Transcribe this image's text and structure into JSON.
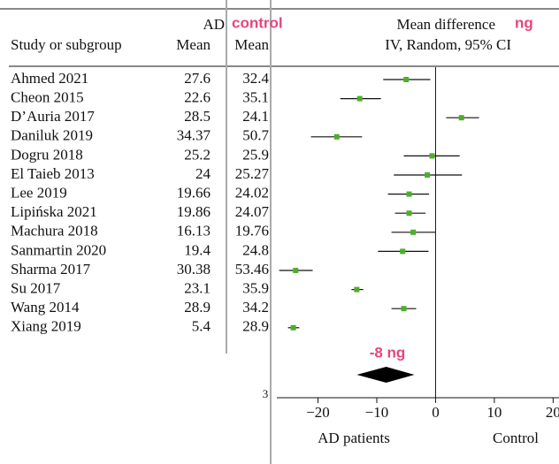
{
  "header": {
    "ad": "AD",
    "control": "control",
    "mean_difference": "Mean difference",
    "unit": "ng",
    "study_col": "Study or subgroup",
    "mean_ad": "Mean",
    "mean_control": "Mean",
    "method": "IV, Random, 95% CI"
  },
  "chart_data": {
    "type": "forest",
    "xlim": [
      -27,
      21
    ],
    "xticks": [
      {
        "value": -20,
        "label": "−20"
      },
      {
        "value": -10,
        "label": "−10"
      },
      0,
      10,
      20
    ],
    "square_color": "#4caf2a",
    "studies": [
      {
        "name": "Ahmed 2021",
        "ad_mean": 27.6,
        "control_mean": 32.4,
        "estimate": -5.0,
        "ci_low": -8.9,
        "ci_high": -0.9
      },
      {
        "name": "Cheon 2015",
        "ad_mean": 22.6,
        "control_mean": 35.1,
        "estimate": -12.9,
        "ci_low": -16.2,
        "ci_high": -9.3
      },
      {
        "name": "D’Auria 2017",
        "ad_mean": 28.5,
        "control_mean": 24.1,
        "estimate": 4.4,
        "ci_low": 1.8,
        "ci_high": 7.4
      },
      {
        "name": "Daniluk 2019",
        "ad_mean": 34.37,
        "control_mean": 50.7,
        "estimate": -16.8,
        "ci_low": -21.2,
        "ci_high": -12.5
      },
      {
        "name": "Dogru 2018",
        "ad_mean": 25.2,
        "control_mean": 25.9,
        "estimate": -0.6,
        "ci_low": -5.4,
        "ci_high": 4.1
      },
      {
        "name": "El Taieb 2013",
        "ad_mean": 24,
        "control_mean": 25.27,
        "estimate": -1.4,
        "ci_low": -7.1,
        "ci_high": 4.5
      },
      {
        "name": "Lee 2019",
        "ad_mean": 19.66,
        "control_mean": 24.02,
        "estimate": -4.5,
        "ci_low": -8.1,
        "ci_high": -1.1
      },
      {
        "name": "Lipińska 2021",
        "ad_mean": 19.86,
        "control_mean": 24.07,
        "estimate": -4.5,
        "ci_low": -6.9,
        "ci_high": -1.7
      },
      {
        "name": "Machura 2018",
        "ad_mean": 16.13,
        "control_mean": 19.76,
        "estimate": -3.8,
        "ci_low": -7.5,
        "ci_high": 0
      },
      {
        "name": "Sanmartin 2020",
        "ad_mean": 19.4,
        "control_mean": 24.8,
        "estimate": -5.6,
        "ci_low": -9.8,
        "ci_high": -1.2
      },
      {
        "name": "Sharma 2017",
        "ad_mean": 30.38,
        "control_mean": 53.46,
        "estimate": -23.8,
        "ci_low": -26.6,
        "ci_high": -20.9
      },
      {
        "name": "Su 2017",
        "ad_mean": 23.1,
        "control_mean": 35.9,
        "estimate": -13.4,
        "ci_low": -14.3,
        "ci_high": -12.3
      },
      {
        "name": "Wang 2014",
        "ad_mean": 28.9,
        "control_mean": 34.2,
        "estimate": -5.4,
        "ci_low": -7.5,
        "ci_high": -3.3
      },
      {
        "name": "Xiang 2019",
        "ad_mean": 5.4,
        "control_mean": 28.9,
        "estimate": -24.2,
        "ci_low": -25.1,
        "ci_high": -23.2
      }
    ],
    "summary": {
      "value": -8.4,
      "ci_low": -13.4,
      "ci_high": -3.6,
      "label": "-8 ng"
    },
    "x_label_left": "AD patients",
    "x_label_right": "Control",
    "axis_note": "3"
  }
}
